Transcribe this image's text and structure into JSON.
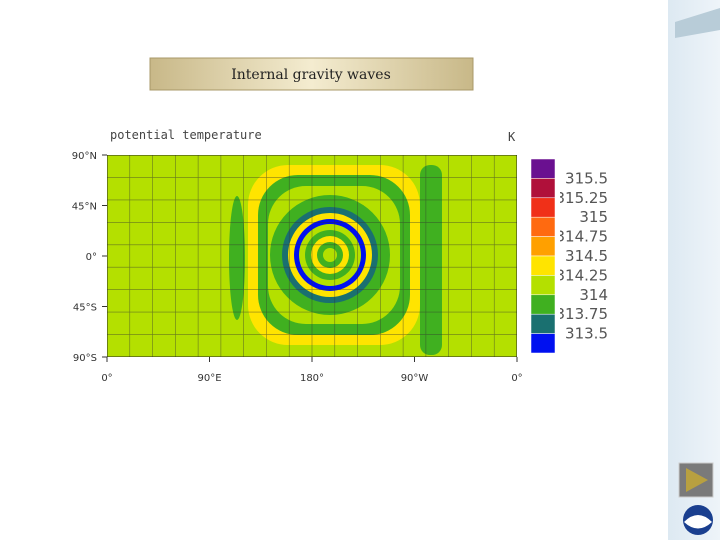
{
  "slide": {
    "title": "Internal gravity waves"
  },
  "plot": {
    "title": "potential temperature",
    "units": "K",
    "y_labels": [
      "90°N",
      "45°N",
      "0°",
      "45°S",
      "90°S"
    ],
    "x_labels": [
      "0°",
      "90°E",
      "180°",
      "90°W",
      "0°"
    ],
    "colorbar": {
      "labels": [
        "315.5",
        "315.25",
        "315",
        "314.75",
        "314.5",
        "314.25",
        "314",
        "313.75",
        "313.5"
      ],
      "colors": [
        "#6a1090",
        "#b0103a",
        "#f03018",
        "#ff6a10",
        "#ffa000",
        "#ffe400",
        "#b4e000",
        "#40b020",
        "#1a7070",
        "#0010f0"
      ]
    }
  }
}
